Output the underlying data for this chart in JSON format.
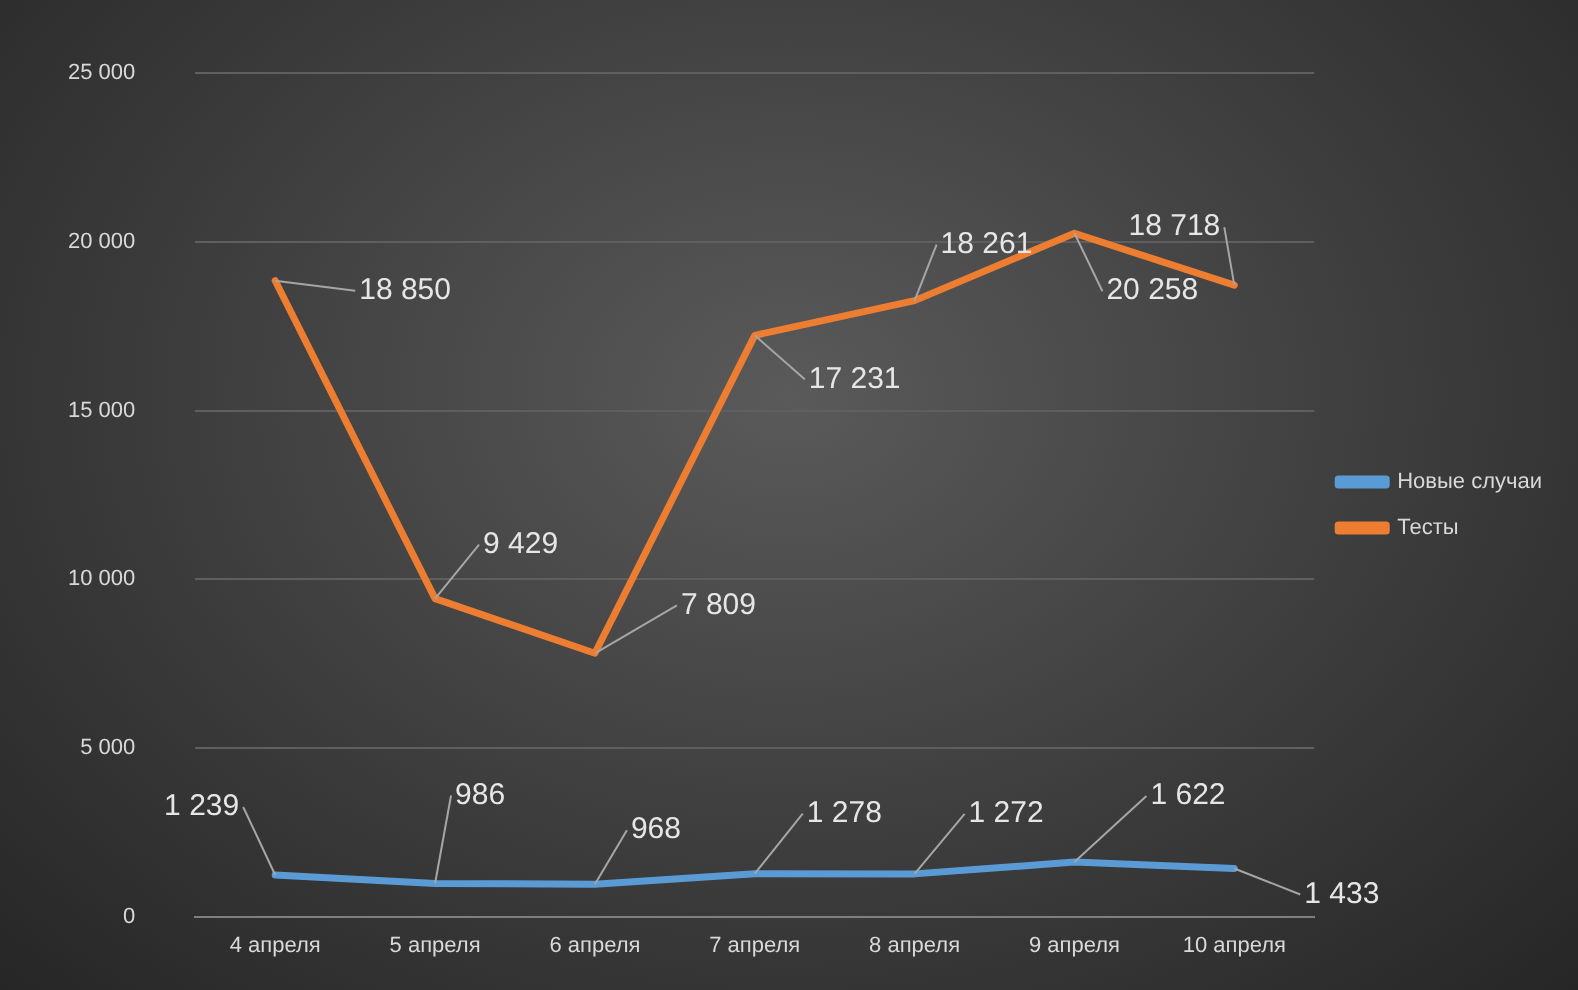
{
  "chart_data": {
    "type": "line",
    "categories": [
      "4 апреля",
      "5 апреля",
      "6 апреля",
      "7 апреля",
      "8 апреля",
      "9 апреля",
      "10 апреля"
    ],
    "series": [
      {
        "name": "Новые случаи",
        "color": "#5b9bd5",
        "values": [
          1239,
          986,
          968,
          1278,
          1272,
          1622,
          1433
        ],
        "value_labels": [
          "1 239",
          "986",
          "968",
          "1 278",
          "1 272",
          "1 622",
          "1 433"
        ]
      },
      {
        "name": "Тесты",
        "color": "#ed7d31",
        "values": [
          18850,
          9429,
          7809,
          17231,
          18261,
          20258,
          18718
        ],
        "value_labels": [
          "18 850",
          "9 429",
          "7 809",
          "17 231",
          "18 261",
          "20 258",
          "18 718"
        ]
      }
    ],
    "ylim": [
      0,
      25000
    ],
    "yticks": [
      {
        "value": 0,
        "label": "0"
      },
      {
        "value": 5000,
        "label": "5 000"
      },
      {
        "value": 10000,
        "label": "10 000"
      },
      {
        "value": 15000,
        "label": "15 000"
      },
      {
        "value": 20000,
        "label": "20 000"
      },
      {
        "value": 25000,
        "label": "25 000"
      }
    ],
    "grid": "y",
    "legend": "right",
    "marker": "none",
    "line_style": "solid"
  }
}
